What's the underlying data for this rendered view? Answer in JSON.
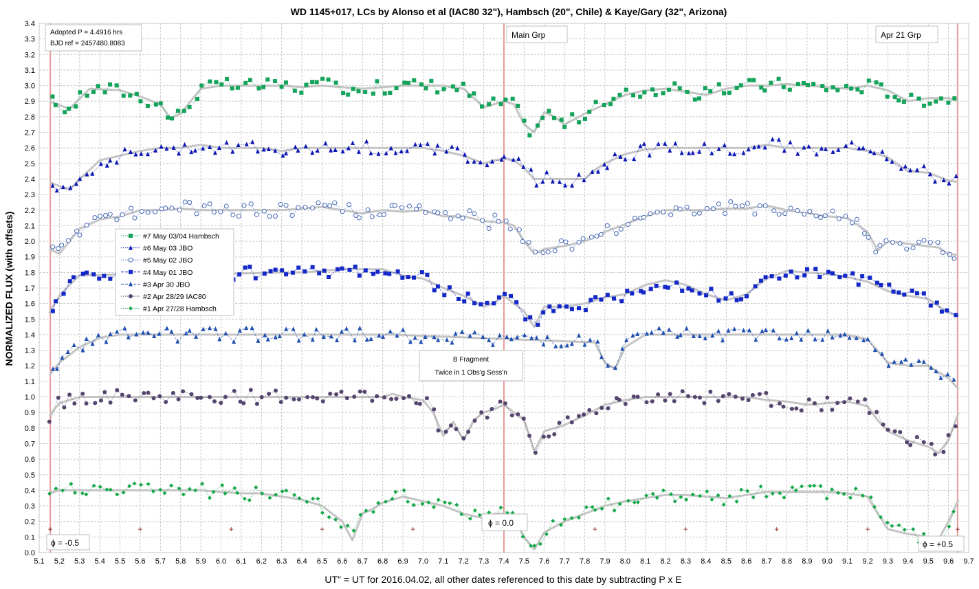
{
  "chart_data": {
    "type": "scatter",
    "title": "WD 1145+017,  LCs by Alonso et al (IAC80 32\"), Hambsch (20\", Chile) & Kaye/Gary (32\", Arizona)",
    "xlabel": "UT\" = UT for 2016.04.02, all other dates referenced to this date by subtracting P x E",
    "ylabel": "NORMALIZED FLUX (with offsets)",
    "xlim": [
      5.1,
      9.7
    ],
    "ylim": [
      0.0,
      3.4
    ],
    "x_ticks": [
      "5.1",
      "5.2",
      "5.3",
      "5.4",
      "5.5",
      "5.6",
      "5.7",
      "5.8",
      "5.9",
      "6.0",
      "6.1",
      "6.2",
      "6.3",
      "6.4",
      "6.5",
      "6.6",
      "6.7",
      "6.8",
      "6.9",
      "7.0",
      "7.1",
      "7.2",
      "7.3",
      "7.4",
      "7.5",
      "7.6",
      "7.7",
      "7.8",
      "7.9",
      "8.0",
      "8.1",
      "8.2",
      "8.3",
      "8.4",
      "8.5",
      "8.6",
      "8.7",
      "8.8",
      "8.9",
      "9.0",
      "9.1",
      "9.2",
      "9.3",
      "9.4",
      "9.5",
      "9.6",
      "9.7"
    ],
    "y_ticks": [
      "0.0",
      "0.1",
      "0.2",
      "0.3",
      "0.4",
      "0.5",
      "0.6",
      "0.7",
      "0.8",
      "0.9",
      "1.0",
      "1.1",
      "1.2",
      "1.3",
      "1.4",
      "1.5",
      "1.6",
      "1.7",
      "1.8",
      "1.9",
      "2.0",
      "2.1",
      "2.2",
      "2.3",
      "2.4",
      "2.5",
      "2.6",
      "2.7",
      "2.8",
      "2.9",
      "3.0",
      "3.1",
      "3.2",
      "3.3",
      "3.4"
    ],
    "grid": true,
    "legend_position": "left-middle",
    "info_box": [
      "Adopted P = 4.4916 hrs",
      "BJD ref = 2457480.8083"
    ],
    "vertical_lines": [
      5.155,
      7.4,
      9.645
    ],
    "phase_labels": [
      {
        "text": "ϕ = -0.5",
        "x": 5.155,
        "y": 0.04
      },
      {
        "text": "ϕ = 0.0",
        "x": 7.4,
        "y": 0.14
      },
      {
        "text": "ϕ = +0.5",
        "x": 9.645,
        "y": 0.04
      }
    ],
    "group_labels": [
      {
        "text": "Main Grp",
        "x": 7.52,
        "y": 3.32
      },
      {
        "text": "Apr 21 Grp",
        "x": 9.39,
        "y": 3.32
      }
    ],
    "fragment_label": {
      "lines": [
        "B Fragment",
        "Twice in 1 Obs'g Sess'n"
      ],
      "x": 7.07,
      "y": 1.19
    },
    "plus_markers": {
      "x": [
        5.155,
        5.6,
        6.05,
        6.5,
        6.95,
        7.4,
        7.85,
        8.3,
        8.75,
        9.2,
        9.645
      ],
      "y": 0.15
    },
    "series": [
      {
        "name": "#7 May 03/04 Hambsch",
        "marker": "square",
        "color": "#13a35a",
        "line": "dotted",
        "offset": 2.3,
        "x": [
          5.15,
          5.25,
          5.35,
          5.5,
          5.6,
          5.7,
          5.75,
          5.8,
          5.9,
          6.0,
          6.1,
          6.2,
          6.3,
          6.4,
          6.5,
          6.6,
          6.7,
          6.8,
          6.9,
          7.0,
          7.1,
          7.2,
          7.25,
          7.3,
          7.35,
          7.4,
          7.45,
          7.5,
          7.55,
          7.6,
          7.65,
          7.7,
          7.8,
          7.9,
          8.0,
          8.1,
          8.2,
          8.3,
          8.4,
          8.5,
          8.6,
          8.7,
          8.8,
          8.9,
          9.0,
          9.1,
          9.2,
          9.3,
          9.4,
          9.5,
          9.6,
          9.65
        ],
        "y": [
          0.6,
          0.55,
          0.68,
          0.67,
          0.63,
          0.58,
          0.49,
          0.52,
          0.68,
          0.7,
          0.7,
          0.7,
          0.7,
          0.69,
          0.7,
          0.69,
          0.68,
          0.69,
          0.7,
          0.7,
          0.7,
          0.68,
          0.62,
          0.56,
          0.58,
          0.6,
          0.58,
          0.45,
          0.4,
          0.53,
          0.5,
          0.45,
          0.52,
          0.58,
          0.64,
          0.67,
          0.68,
          0.66,
          0.64,
          0.68,
          0.7,
          0.7,
          0.71,
          0.7,
          0.69,
          0.68,
          0.7,
          0.67,
          0.6,
          0.62,
          0.62,
          0.6
        ]
      },
      {
        "name": "#6 May 03 JBO",
        "marker": "triangle",
        "color": "#0b16b5",
        "line": "dotted",
        "offset": 2.0,
        "x": [
          5.15,
          5.25,
          5.3,
          5.4,
          5.5,
          5.6,
          5.7,
          5.8,
          5.9,
          6.0,
          6.1,
          6.2,
          6.3,
          6.4,
          6.5,
          6.6,
          6.7,
          6.8,
          6.9,
          7.0,
          7.1,
          7.2,
          7.3,
          7.35,
          7.4,
          7.45,
          7.5,
          7.55,
          7.6,
          7.7,
          7.8,
          7.85,
          7.9,
          8.0,
          8.1,
          8.2,
          8.3,
          8.4,
          8.5,
          8.6,
          8.7,
          8.8,
          8.9,
          9.0,
          9.1,
          9.2,
          9.3,
          9.4,
          9.5,
          9.6,
          9.65
        ],
        "y": [
          0.38,
          0.33,
          0.4,
          0.52,
          0.55,
          0.58,
          0.6,
          0.6,
          0.62,
          0.6,
          0.6,
          0.6,
          0.58,
          0.6,
          0.6,
          0.6,
          0.6,
          0.6,
          0.6,
          0.6,
          0.58,
          0.55,
          0.5,
          0.52,
          0.53,
          0.52,
          0.47,
          0.4,
          0.4,
          0.4,
          0.4,
          0.46,
          0.5,
          0.56,
          0.59,
          0.6,
          0.6,
          0.6,
          0.6,
          0.6,
          0.62,
          0.6,
          0.6,
          0.6,
          0.6,
          0.58,
          0.54,
          0.45,
          0.44,
          0.39,
          0.38
        ]
      },
      {
        "name": "#5 May 02 JBO",
        "marker": "circle-open",
        "color": "#4466b8",
        "line": "dotted",
        "offset": 1.5,
        "x": [
          5.15,
          5.2,
          5.3,
          5.4,
          5.5,
          5.6,
          5.7,
          5.8,
          5.9,
          6.0,
          6.1,
          6.2,
          6.3,
          6.4,
          6.5,
          6.6,
          6.7,
          6.8,
          6.9,
          7.0,
          7.1,
          7.2,
          7.3,
          7.4,
          7.45,
          7.5,
          7.55,
          7.6,
          7.7,
          7.8,
          7.9,
          8.0,
          8.1,
          8.2,
          8.3,
          8.4,
          8.5,
          8.6,
          8.7,
          8.8,
          8.9,
          9.0,
          9.1,
          9.2,
          9.25,
          9.3,
          9.55,
          9.6,
          9.65
        ],
        "y": [
          0.45,
          0.42,
          0.58,
          0.64,
          0.66,
          0.7,
          0.7,
          0.71,
          0.7,
          0.7,
          0.7,
          0.7,
          0.7,
          0.71,
          0.72,
          0.7,
          0.68,
          0.7,
          0.69,
          0.7,
          0.66,
          0.66,
          0.63,
          0.62,
          0.6,
          0.5,
          0.42,
          0.45,
          0.47,
          0.5,
          0.56,
          0.61,
          0.66,
          0.7,
          0.7,
          0.7,
          0.71,
          0.71,
          0.73,
          0.7,
          0.68,
          0.66,
          0.65,
          0.56,
          0.44,
          0.5,
          0.46,
          0.42,
          0.41
        ]
      },
      {
        "name": "#4 May 01 JBO",
        "marker": "square",
        "color": "#1428c8",
        "line": "dashed",
        "offset": 1.1,
        "x": [
          5.15,
          5.2,
          5.25,
          5.3,
          5.6,
          6.0,
          6.3,
          6.4,
          6.5,
          6.6,
          6.7,
          6.8,
          6.9,
          7.0,
          7.1,
          7.2,
          7.3,
          7.35,
          7.4,
          7.5,
          7.55,
          7.6,
          7.7,
          7.8,
          7.9,
          8.0,
          8.1,
          8.2,
          8.3,
          8.4,
          8.5,
          8.6,
          8.7,
          8.8,
          8.9,
          9.0,
          9.1,
          9.2,
          9.3,
          9.4,
          9.5,
          9.6,
          9.65
        ],
        "y": [
          0.44,
          0.55,
          0.62,
          0.68,
          0.69,
          0.69,
          0.7,
          0.7,
          0.71,
          0.72,
          0.72,
          0.72,
          0.68,
          0.66,
          0.6,
          0.55,
          0.48,
          0.5,
          0.55,
          0.45,
          0.35,
          0.48,
          0.48,
          0.5,
          0.54,
          0.56,
          0.62,
          0.65,
          0.62,
          0.56,
          0.52,
          0.56,
          0.66,
          0.71,
          0.7,
          0.69,
          0.67,
          0.64,
          0.58,
          0.55,
          0.53,
          0.44,
          0.42
        ]
      },
      {
        "name": "#3 Apr 30 JBO",
        "marker": "triangle",
        "color": "#1f4fb0",
        "line": "dashed",
        "offset": 0.4,
        "x": [
          5.15,
          5.2,
          5.3,
          5.4,
          5.5,
          5.6,
          5.7,
          5.8,
          5.9,
          6.0,
          6.1,
          6.2,
          6.3,
          6.4,
          6.5,
          6.6,
          6.7,
          6.8,
          6.85,
          7.85,
          7.9,
          7.95,
          8.0,
          8.1,
          8.3,
          8.5,
          8.7,
          8.9,
          9.0,
          9.1,
          9.2,
          9.3,
          9.4,
          9.5,
          9.6,
          9.65
        ],
        "y": [
          0.74,
          0.82,
          0.92,
          0.98,
          1.0,
          1.0,
          1.0,
          1.0,
          1.0,
          1.0,
          1.0,
          1.0,
          1.0,
          1.0,
          1.0,
          1.0,
          1.0,
          1.0,
          1.0,
          0.95,
          0.82,
          0.78,
          0.92,
          1.0,
          1.0,
          1.0,
          1.0,
          1.0,
          1.0,
          1.0,
          0.97,
          0.82,
          0.8,
          0.8,
          0.72,
          0.65
        ]
      },
      {
        "name": "#2 Apr 28/29 IAC80",
        "marker": "circle",
        "color": "#56466f",
        "line": "dotted",
        "offset": 0.0,
        "x": [
          5.15,
          5.2,
          5.3,
          5.4,
          5.5,
          5.6,
          5.7,
          5.8,
          5.9,
          6.0,
          6.1,
          6.2,
          6.3,
          6.4,
          6.5,
          6.6,
          6.7,
          6.8,
          6.85,
          6.9,
          7.0,
          7.05,
          7.1,
          7.15,
          7.2,
          7.25,
          7.3,
          7.35,
          7.4,
          7.45,
          7.5,
          7.55,
          7.6,
          7.7,
          7.8,
          7.9,
          8.0,
          8.1,
          8.2,
          8.3,
          8.4,
          8.5,
          8.6,
          8.7,
          8.8,
          8.9,
          9.0,
          9.1,
          9.2,
          9.25,
          9.3,
          9.4,
          9.5,
          9.55,
          9.6,
          9.65
        ],
        "y": [
          0.88,
          0.96,
          1.0,
          1.0,
          1.0,
          1.0,
          1.0,
          1.0,
          1.0,
          1.0,
          1.0,
          1.0,
          1.0,
          1.0,
          1.0,
          1.0,
          1.0,
          1.0,
          1.02,
          1.0,
          0.98,
          0.9,
          0.75,
          0.84,
          0.72,
          0.85,
          0.9,
          0.92,
          0.95,
          0.9,
          0.85,
          0.65,
          0.78,
          0.82,
          0.88,
          0.95,
          0.98,
          1.0,
          1.0,
          1.0,
          1.0,
          1.0,
          1.0,
          0.98,
          0.97,
          0.95,
          0.96,
          0.97,
          0.94,
          0.85,
          0.78,
          0.72,
          0.68,
          0.64,
          0.72,
          0.9
        ]
      },
      {
        "name": "#1 Apr 27/28 Hambsch",
        "marker": "diamond",
        "color": "#16a84a",
        "line": "dotted",
        "offset": -0.3,
        "x": [
          5.15,
          5.2,
          5.3,
          5.4,
          5.5,
          5.6,
          5.7,
          5.8,
          5.9,
          6.0,
          6.1,
          6.2,
          6.3,
          6.4,
          6.5,
          6.55,
          6.6,
          6.65,
          6.7,
          6.75,
          6.8,
          6.9,
          7.0,
          7.1,
          7.2,
          7.3,
          7.35,
          7.4,
          7.45,
          7.5,
          7.55,
          7.6,
          7.7,
          7.8,
          7.9,
          8.0,
          8.1,
          8.2,
          8.3,
          8.4,
          8.5,
          8.6,
          8.7,
          8.8,
          8.9,
          9.0,
          9.1,
          9.2,
          9.25,
          9.3,
          9.4,
          9.5,
          9.55,
          9.6,
          9.65
        ],
        "y": [
          0.68,
          0.7,
          0.7,
          0.7,
          0.7,
          0.7,
          0.7,
          0.7,
          0.7,
          0.69,
          0.68,
          0.68,
          0.66,
          0.64,
          0.6,
          0.55,
          0.5,
          0.38,
          0.55,
          0.58,
          0.62,
          0.66,
          0.63,
          0.6,
          0.55,
          0.52,
          0.55,
          0.55,
          0.52,
          0.4,
          0.32,
          0.43,
          0.5,
          0.55,
          0.6,
          0.63,
          0.65,
          0.67,
          0.67,
          0.66,
          0.65,
          0.67,
          0.69,
          0.69,
          0.69,
          0.69,
          0.68,
          0.66,
          0.55,
          0.45,
          0.42,
          0.4,
          0.38,
          0.5,
          0.64
        ]
      }
    ]
  }
}
